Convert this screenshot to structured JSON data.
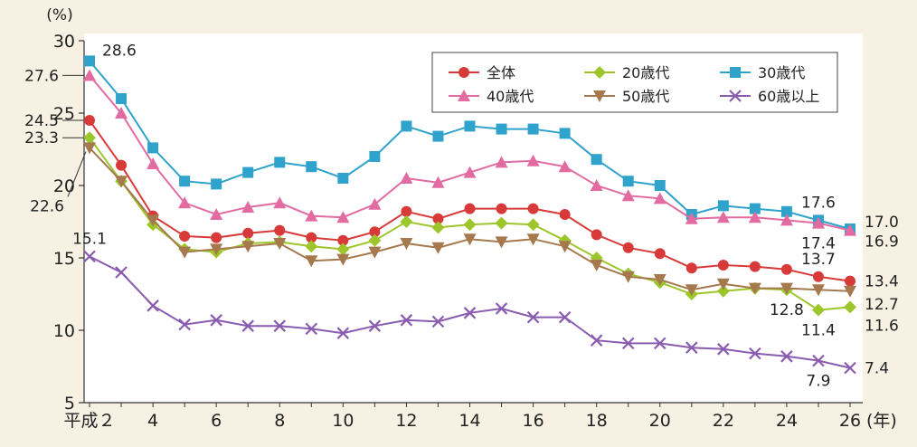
{
  "chart_data": {
    "type": "line",
    "ylabel_unit": "(%)",
    "xunit": "(年)",
    "ylim": [
      5,
      30
    ],
    "yticks": [
      "5",
      "10",
      "15",
      "20",
      "25",
      "30"
    ],
    "x": [
      2,
      3,
      4,
      5,
      6,
      7,
      8,
      9,
      10,
      11,
      12,
      13,
      14,
      15,
      16,
      17,
      18,
      19,
      20,
      21,
      22,
      23,
      24,
      25,
      26
    ],
    "xtick_labels": [
      {
        "x": 2,
        "label": "平成２"
      },
      {
        "x": 4,
        "label": "4"
      },
      {
        "x": 6,
        "label": "6"
      },
      {
        "x": 8,
        "label": "8"
      },
      {
        "x": 10,
        "label": "10"
      },
      {
        "x": 12,
        "label": "12"
      },
      {
        "x": 14,
        "label": "14"
      },
      {
        "x": 16,
        "label": "16"
      },
      {
        "x": 18,
        "label": "18"
      },
      {
        "x": 20,
        "label": "20"
      },
      {
        "x": 22,
        "label": "22"
      },
      {
        "x": 24,
        "label": "24"
      },
      {
        "x": 26,
        "label": "26"
      }
    ],
    "grid": false,
    "legend_position": "top-right",
    "series": [
      {
        "name": "全体",
        "color": "#d83a3a",
        "marker": "circle",
        "values": [
          24.5,
          21.4,
          17.9,
          16.5,
          16.4,
          16.7,
          16.9,
          16.4,
          16.2,
          16.8,
          18.2,
          17.7,
          18.4,
          18.4,
          18.4,
          18.0,
          16.6,
          15.7,
          15.3,
          14.3,
          14.5,
          14.4,
          14.2,
          13.7,
          13.4
        ]
      },
      {
        "name": "20歳代",
        "color": "#9dc62b",
        "marker": "diamond",
        "values": [
          23.3,
          20.3,
          17.3,
          15.6,
          15.4,
          16.0,
          16.1,
          15.8,
          15.6,
          16.2,
          17.5,
          17.1,
          17.3,
          17.4,
          17.3,
          16.2,
          15.0,
          13.9,
          13.3,
          12.5,
          12.7,
          12.9,
          12.8,
          11.4,
          11.6
        ]
      },
      {
        "name": "30歳代",
        "color": "#2fa3cc",
        "marker": "square",
        "values": [
          28.6,
          26.0,
          22.6,
          20.3,
          20.1,
          20.9,
          21.6,
          21.3,
          20.5,
          22.0,
          24.1,
          23.4,
          24.1,
          23.9,
          23.9,
          23.6,
          21.8,
          20.3,
          20.0,
          18.0,
          18.6,
          18.4,
          18.2,
          17.6,
          17.0
        ]
      },
      {
        "name": "40歳代",
        "color": "#e26ba1",
        "marker": "triangle",
        "values": [
          27.6,
          25.0,
          21.5,
          18.8,
          18.0,
          18.5,
          18.8,
          17.9,
          17.8,
          18.7,
          20.5,
          20.2,
          20.9,
          21.6,
          21.7,
          21.3,
          20.0,
          19.3,
          19.1,
          17.7,
          17.8,
          17.8,
          17.6,
          17.4,
          16.9
        ]
      },
      {
        "name": "50歳代",
        "color": "#a5794d",
        "marker": "triangle-down",
        "values": [
          22.6,
          20.3,
          17.6,
          15.4,
          15.6,
          15.8,
          16.0,
          14.8,
          14.9,
          15.4,
          16.0,
          15.7,
          16.3,
          16.1,
          16.3,
          15.8,
          14.5,
          13.7,
          13.5,
          12.8,
          13.2,
          12.9,
          12.9,
          12.8,
          12.7
        ]
      },
      {
        "name": "60歳以上",
        "color": "#8a5cb0",
        "marker": "cross",
        "values": [
          15.1,
          14.0,
          11.7,
          10.4,
          10.7,
          10.3,
          10.3,
          10.1,
          9.8,
          10.3,
          10.7,
          10.6,
          11.2,
          11.5,
          10.9,
          10.9,
          9.3,
          9.1,
          9.1,
          8.8,
          8.7,
          8.4,
          8.2,
          7.9,
          7.4
        ]
      }
    ],
    "annotations": [
      {
        "text": "28.6",
        "x": 2,
        "y": 28.6,
        "side": "right"
      },
      {
        "text": "27.6",
        "x": 2,
        "y": 27.6,
        "side": "left"
      },
      {
        "text": "24.5",
        "x": 2,
        "y": 24.5,
        "side": "left"
      },
      {
        "text": "23.3",
        "x": 2,
        "y": 23.3,
        "side": "left"
      },
      {
        "text": "22.6",
        "x": 2,
        "y": 22.6,
        "side": "left-below"
      },
      {
        "text": "15.1",
        "x": 2,
        "y": 15.1,
        "side": "above"
      },
      {
        "text": "17.6",
        "x": 25,
        "y": 17.6,
        "side": "above"
      },
      {
        "text": "17.4",
        "x": 25,
        "y": 17.4,
        "side": "below"
      },
      {
        "text": "13.7",
        "x": 25,
        "y": 13.7,
        "side": "above"
      },
      {
        "text": "12.8",
        "x": 24,
        "y": 12.8,
        "side": "below"
      },
      {
        "text": "11.4",
        "x": 25,
        "y": 11.4,
        "side": "below"
      },
      {
        "text": "7.9",
        "x": 25,
        "y": 7.9,
        "side": "below"
      },
      {
        "text": "17.0",
        "x": 26,
        "y": 17.0,
        "side": "right"
      },
      {
        "text": "16.9",
        "x": 26,
        "y": 16.9,
        "side": "right"
      },
      {
        "text": "13.4",
        "x": 26,
        "y": 13.4,
        "side": "right"
      },
      {
        "text": "12.7",
        "x": 26,
        "y": 12.7,
        "side": "right"
      },
      {
        "text": "11.6",
        "x": 26,
        "y": 11.6,
        "side": "right"
      },
      {
        "text": "7.4",
        "x": 26,
        "y": 7.4,
        "side": "right"
      }
    ]
  }
}
